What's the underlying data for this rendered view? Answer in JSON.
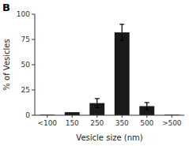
{
  "chart_data": {
    "type": "bar",
    "categories": [
      "<100",
      "150",
      "250",
      "350",
      "500",
      ">500"
    ],
    "values": [
      0.5,
      3.0,
      12.0,
      82.0,
      9.0,
      0.5
    ],
    "errors": [
      0.0,
      0.0,
      4.5,
      8.0,
      3.5,
      0.0
    ],
    "color": "#1a1a1a",
    "xlabel": "Vesicle size (nm)",
    "ylabel": "% of Vesicles",
    "annotations": [
      "B"
    ],
    "ylim": [
      0,
      100
    ],
    "yticks": [
      0,
      25,
      50,
      75,
      100
    ],
    "grid": false
  }
}
